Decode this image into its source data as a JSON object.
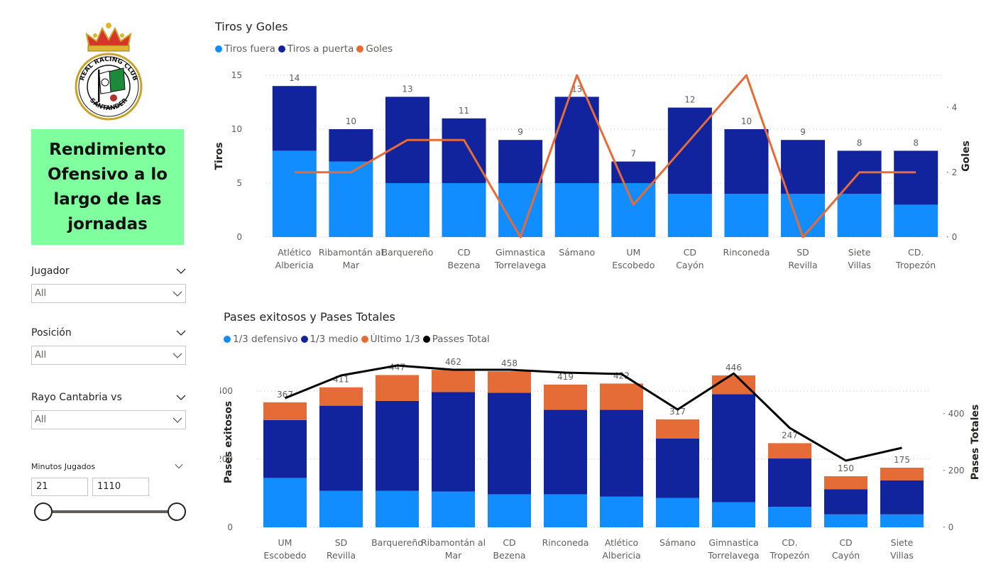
{
  "logo": {
    "text_top": "REAL RACING CLUB",
    "text_bottom": "SANTANDER"
  },
  "report_title": "Rendimiento Ofensivo a lo largo de las jornadas",
  "title_lines": [
    "Rendimiento",
    "Ofensivo a lo",
    "largo de las",
    "jornadas"
  ],
  "colors": {
    "title_bg": "#80ff9e",
    "light_blue": "#118dff",
    "dark_blue": "#12239e",
    "orange": "#e66c37",
    "black": "#000000"
  },
  "filters": {
    "jugador": {
      "label": "Jugador",
      "value": "All"
    },
    "posicion": {
      "label": "Posición",
      "value": "All"
    },
    "rival": {
      "label": "Rayo Cantabria vs",
      "value": "All"
    },
    "minutos": {
      "label": "Minutos Jugados",
      "min": "21",
      "max": "1110"
    }
  },
  "chart_data": [
    {
      "type": "bar",
      "title": "Tiros y Goles",
      "ylabel": "Tiros",
      "y2label": "Goles",
      "ylim": [
        0,
        15
      ],
      "y2lim": [
        0,
        5
      ],
      "yticks": [
        0,
        5,
        10,
        15
      ],
      "y2ticks": [
        0,
        2,
        4
      ],
      "categories": [
        "Atlético Albericia",
        "Ribamontán al Mar",
        "Barquereño",
        "CD Bezena",
        "Gimnastica Torrelavega",
        "Sámano",
        "UM Escobedo",
        "CD Cayón",
        "Rinconeda",
        "SD Revilla",
        "Siete Villas",
        "CD. Tropezón"
      ],
      "series": [
        {
          "name": "Tiros fuera",
          "values": [
            8,
            7,
            5,
            5,
            5,
            5,
            5,
            4,
            4,
            4,
            4,
            3
          ]
        },
        {
          "name": "Tiros a puerta",
          "values": [
            6,
            3,
            8,
            6,
            4,
            8,
            2,
            8,
            6,
            5,
            4,
            5
          ]
        },
        {
          "name": "Goles",
          "values": [
            2,
            2,
            3,
            3,
            0,
            5,
            1,
            3,
            5,
            0,
            2,
            2
          ]
        }
      ],
      "totals": [
        14,
        10,
        13,
        11,
        9,
        13,
        7,
        12,
        10,
        9,
        8,
        8
      ],
      "legend": "top-left"
    },
    {
      "type": "bar",
      "title": "Pases exitosos y Pases Totales",
      "ylabel": "Pases exitosos",
      "y2label": "Pases Totales",
      "ylim": [
        0,
        500
      ],
      "y2lim": [
        0,
        600
      ],
      "yticks": [
        0,
        200,
        400
      ],
      "y2ticks": [
        0,
        200,
        400
      ],
      "categories": [
        "UM Escobedo",
        "SD Revilla",
        "Barquereño",
        "Ribamontán al Mar",
        "CD Bezena",
        "Rinconeda",
        "Atlético Albericia",
        "Sámano",
        "Gimnastica Torrelavega",
        "CD. Tropezón",
        "CD Cayón",
        "Siete Villas"
      ],
      "series": [
        {
          "name": "1/3 defensivo",
          "values": [
            145,
            107,
            107,
            105,
            97,
            97,
            90,
            86,
            74,
            60,
            38,
            38
          ]
        },
        {
          "name": "1/3 medio",
          "values": [
            170,
            250,
            264,
            292,
            298,
            248,
            255,
            175,
            317,
            142,
            74,
            100
          ]
        },
        {
          "name": "Último 1/3",
          "values": [
            52,
            54,
            76,
            65,
            63,
            74,
            77,
            56,
            55,
            45,
            38,
            37
          ]
        },
        {
          "name": "Passes Total",
          "values": [
            455,
            535,
            570,
            555,
            555,
            545,
            540,
            415,
            542,
            350,
            235,
            280
          ]
        }
      ],
      "totals": [
        367,
        411,
        447,
        462,
        458,
        419,
        422,
        317,
        446,
        247,
        150,
        175
      ],
      "legend": "top-left"
    }
  ]
}
